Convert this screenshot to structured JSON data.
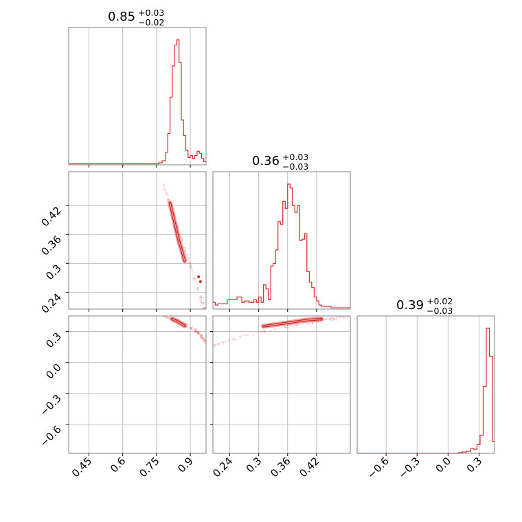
{
  "figure": {
    "type": "corner-plot",
    "color": "#d62728",
    "frame_color": "#808080",
    "grid_color": "#b0b0b0"
  },
  "chart_data": [
    {
      "type": "histogram",
      "panel": "diag-0",
      "title": {
        "median": "0.85",
        "plus": "+0.03",
        "minus": "−0.02"
      },
      "xlim": [
        0.36,
        0.97
      ],
      "x_ticks": [
        0.45,
        0.6,
        0.75,
        0.9
      ],
      "grid": true,
      "bins": [
        {
          "x0": 0.36,
          "x1": 0.4,
          "count": 1
        },
        {
          "x0": 0.4,
          "x1": 0.44,
          "count": 1
        },
        {
          "x0": 0.44,
          "x1": 0.48,
          "count": 1
        },
        {
          "x0": 0.48,
          "x1": 0.52,
          "count": 1
        },
        {
          "x0": 0.52,
          "x1": 0.56,
          "count": 1
        },
        {
          "x0": 0.56,
          "x1": 0.6,
          "count": 1
        },
        {
          "x0": 0.6,
          "x1": 0.64,
          "count": 1
        },
        {
          "x0": 0.64,
          "x1": 0.68,
          "count": 1
        },
        {
          "x0": 0.68,
          "x1": 0.72,
          "count": 1
        },
        {
          "x0": 0.72,
          "x1": 0.76,
          "count": 1
        },
        {
          "x0": 0.76,
          "x1": 0.775,
          "count": 2
        },
        {
          "x0": 0.775,
          "x1": 0.79,
          "count": 4
        },
        {
          "x0": 0.79,
          "x1": 0.8,
          "count": 12
        },
        {
          "x0": 0.8,
          "x1": 0.81,
          "count": 30
        },
        {
          "x0": 0.81,
          "x1": 0.82,
          "count": 65
        },
        {
          "x0": 0.82,
          "x1": 0.83,
          "count": 95
        },
        {
          "x0": 0.83,
          "x1": 0.84,
          "count": 115
        },
        {
          "x0": 0.84,
          "x1": 0.85,
          "count": 120
        },
        {
          "x0": 0.85,
          "x1": 0.86,
          "count": 98
        },
        {
          "x0": 0.86,
          "x1": 0.87,
          "count": 43
        },
        {
          "x0": 0.87,
          "x1": 0.88,
          "count": 28
        },
        {
          "x0": 0.88,
          "x1": 0.89,
          "count": 14
        },
        {
          "x0": 0.89,
          "x1": 0.9,
          "count": 7
        },
        {
          "x0": 0.9,
          "x1": 0.91,
          "count": 9
        },
        {
          "x0": 0.91,
          "x1": 0.92,
          "count": 6
        },
        {
          "x0": 0.92,
          "x1": 0.93,
          "count": 9
        },
        {
          "x0": 0.93,
          "x1": 0.94,
          "count": 13
        },
        {
          "x0": 0.94,
          "x1": 0.95,
          "count": 11
        },
        {
          "x0": 0.95,
          "x1": 0.96,
          "count": 6
        },
        {
          "x0": 0.96,
          "x1": 0.97,
          "count": 3
        }
      ]
    },
    {
      "type": "histogram",
      "panel": "diag-1",
      "title": {
        "median": "0.36",
        "plus": "+0.03",
        "minus": "−0.03"
      },
      "xlim": [
        0.205,
        0.49
      ],
      "x_ticks": [
        0.24,
        0.3,
        0.36,
        0.42
      ],
      "grid": true,
      "bins": [
        {
          "x0": 0.205,
          "x1": 0.21,
          "count": 5
        },
        {
          "x0": 0.21,
          "x1": 0.215,
          "count": 3
        },
        {
          "x0": 0.215,
          "x1": 0.235,
          "count": 4
        },
        {
          "x0": 0.235,
          "x1": 0.255,
          "count": 7
        },
        {
          "x0": 0.255,
          "x1": 0.265,
          "count": 9
        },
        {
          "x0": 0.265,
          "x1": 0.27,
          "count": 5
        },
        {
          "x0": 0.27,
          "x1": 0.28,
          "count": 6
        },
        {
          "x0": 0.28,
          "x1": 0.29,
          "count": 5
        },
        {
          "x0": 0.29,
          "x1": 0.295,
          "count": 7
        },
        {
          "x0": 0.295,
          "x1": 0.3,
          "count": 5
        },
        {
          "x0": 0.3,
          "x1": 0.305,
          "count": 9
        },
        {
          "x0": 0.305,
          "x1": 0.31,
          "count": 5
        },
        {
          "x0": 0.31,
          "x1": 0.315,
          "count": 18
        },
        {
          "x0": 0.315,
          "x1": 0.32,
          "count": 15
        },
        {
          "x0": 0.32,
          "x1": 0.325,
          "count": 7
        },
        {
          "x0": 0.325,
          "x1": 0.33,
          "count": 32
        },
        {
          "x0": 0.33,
          "x1": 0.335,
          "count": 34
        },
        {
          "x0": 0.335,
          "x1": 0.34,
          "count": 44
        },
        {
          "x0": 0.34,
          "x1": 0.345,
          "count": 65
        },
        {
          "x0": 0.345,
          "x1": 0.35,
          "count": 63
        },
        {
          "x0": 0.35,
          "x1": 0.355,
          "count": 80
        },
        {
          "x0": 0.355,
          "x1": 0.36,
          "count": 75
        },
        {
          "x0": 0.36,
          "x1": 0.365,
          "count": 93
        },
        {
          "x0": 0.365,
          "x1": 0.37,
          "count": 90
        },
        {
          "x0": 0.37,
          "x1": 0.375,
          "count": 77
        },
        {
          "x0": 0.375,
          "x1": 0.38,
          "count": 72
        },
        {
          "x0": 0.38,
          "x1": 0.385,
          "count": 77
        },
        {
          "x0": 0.385,
          "x1": 0.39,
          "count": 51
        },
        {
          "x0": 0.39,
          "x1": 0.395,
          "count": 52
        },
        {
          "x0": 0.395,
          "x1": 0.4,
          "count": 56
        },
        {
          "x0": 0.4,
          "x1": 0.405,
          "count": 28
        },
        {
          "x0": 0.405,
          "x1": 0.41,
          "count": 20
        },
        {
          "x0": 0.41,
          "x1": 0.415,
          "count": 16
        },
        {
          "x0": 0.415,
          "x1": 0.42,
          "count": 9
        },
        {
          "x0": 0.42,
          "x1": 0.425,
          "count": 6
        },
        {
          "x0": 0.425,
          "x1": 0.43,
          "count": 3
        },
        {
          "x0": 0.43,
          "x1": 0.45,
          "count": 2
        },
        {
          "x0": 0.45,
          "x1": 0.47,
          "count": 1
        },
        {
          "x0": 0.47,
          "x1": 0.49,
          "count": 1
        }
      ]
    },
    {
      "type": "histogram",
      "panel": "diag-2",
      "title": {
        "median": "0.39",
        "plus": "+0.02",
        "minus": "−0.03"
      },
      "xlim": [
        -0.88,
        0.45
      ],
      "x_ticks": [
        -0.6,
        -0.3,
        0.0,
        0.3
      ],
      "grid": true,
      "bins": [
        {
          "x0": -0.88,
          "x1": 0.1,
          "count": 0
        },
        {
          "x0": 0.1,
          "x1": 0.14,
          "count": 1
        },
        {
          "x0": 0.14,
          "x1": 0.18,
          "count": 2
        },
        {
          "x0": 0.18,
          "x1": 0.22,
          "count": 3
        },
        {
          "x0": 0.22,
          "x1": 0.25,
          "count": 7
        },
        {
          "x0": 0.25,
          "x1": 0.28,
          "count": 6
        },
        {
          "x0": 0.28,
          "x1": 0.31,
          "count": 13
        },
        {
          "x0": 0.31,
          "x1": 0.34,
          "count": 27
        },
        {
          "x0": 0.34,
          "x1": 0.37,
          "count": 100
        },
        {
          "x0": 0.37,
          "x1": 0.4,
          "count": 187
        },
        {
          "x0": 0.4,
          "x1": 0.43,
          "count": 145
        },
        {
          "x0": 0.43,
          "x1": 0.45,
          "count": 18
        }
      ]
    },
    {
      "type": "scatter",
      "panel": "lower-1-0",
      "xlim": [
        0.36,
        0.97
      ],
      "ylim": [
        0.205,
        0.49
      ],
      "y_ticks": [
        0.24,
        0.3,
        0.36,
        0.42
      ],
      "grid": true,
      "sample_path": {
        "x": [
          0.78,
          0.97
        ],
        "y": [
          0.465,
          0.195
        ]
      },
      "contour_ridge": {
        "x": [
          0.81,
          0.82,
          0.83,
          0.84,
          0.85,
          0.86,
          0.875
        ],
        "y": [
          0.425,
          0.405,
          0.385,
          0.365,
          0.345,
          0.33,
          0.305
        ]
      },
      "outlier_points": [
        {
          "x": 0.945,
          "y": 0.262
        },
        {
          "x": 0.937,
          "y": 0.272
        }
      ]
    },
    {
      "type": "scatter",
      "panel": "lower-2-0",
      "xlim": [
        0.36,
        0.97
      ],
      "ylim": [
        -0.88,
        0.45
      ],
      "y_ticks": [
        -0.6,
        -0.3,
        0.0,
        0.3
      ],
      "grid": true,
      "sample_path": {
        "x": [
          0.78,
          0.86,
          0.93,
          0.97
        ],
        "y": [
          0.45,
          0.39,
          0.3,
          0.2
        ]
      },
      "contour_ridge": {
        "x": [
          0.82,
          0.84,
          0.86,
          0.875
        ],
        "y": [
          0.42,
          0.4,
          0.375,
          0.355
        ]
      }
    },
    {
      "type": "scatter",
      "panel": "lower-2-1",
      "xlim": [
        0.205,
        0.49
      ],
      "ylim": [
        -0.88,
        0.45
      ],
      "grid": true,
      "sample_path": {
        "x": [
          0.205,
          0.26,
          0.32,
          0.38,
          0.44,
          0.49
        ],
        "y": [
          0.16,
          0.25,
          0.31,
          0.37,
          0.41,
          0.45
        ]
      },
      "contour_ridge": {
        "x": [
          0.31,
          0.34,
          0.37,
          0.4,
          0.43
        ],
        "y": [
          0.35,
          0.37,
          0.39,
          0.41,
          0.42
        ]
      }
    }
  ]
}
